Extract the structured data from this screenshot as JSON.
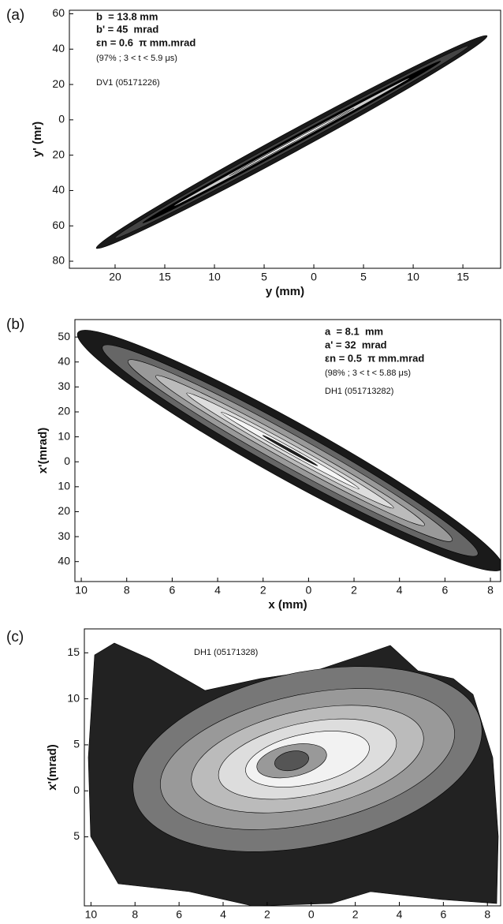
{
  "chart_data": [
    {
      "type": "contour",
      "panel": "(a)",
      "x_label": "y (mm)",
      "y_label": "y' (mr)",
      "annotations": [
        "b  = 13.8 mm",
        "b' = 45  mrad",
        "εn = 0.6  π mm.mrad",
        "(97% ; 3 < t < 5.9 μs)",
        "DV1 (05171226)"
      ],
      "xlim": [
        -24.6,
        18.8
      ],
      "ylim": [
        -84,
        62
      ],
      "xticks": [
        {
          "value": -20,
          "label": "20"
        },
        {
          "value": -15,
          "label": "15"
        },
        {
          "value": -10,
          "label": "10"
        },
        {
          "value": -5,
          "label": "5"
        },
        0,
        5,
        10,
        15
      ],
      "yticks": [
        60,
        40,
        20,
        0,
        {
          "value": -20,
          "label": "20"
        },
        {
          "value": -40,
          "label": "40"
        },
        {
          "value": -60,
          "label": "60"
        },
        {
          "value": -80,
          "label": "80"
        }
      ]
    },
    {
      "type": "contour",
      "panel": "(b)",
      "x_label": "x (mm)",
      "y_label": "x'(mrad)",
      "annotations": [
        "a  = 8.1  mm",
        "a' = 32  mrad",
        "εn = 0.5  π mm.mrad",
        "(98% ; 3 < t < 5.88 μs)",
        "DH1 (051713282)"
      ],
      "xlim": [
        -10.28,
        8.45
      ],
      "ylim": [
        -48,
        57
      ],
      "xticks": [
        {
          "value": -10,
          "label": "10"
        },
        {
          "value": -8,
          "label": "8"
        },
        {
          "value": -6,
          "label": "6"
        },
        {
          "value": -4,
          "label": "4"
        },
        {
          "value": -2,
          "label": "2"
        },
        0,
        2,
        4,
        6,
        8
      ],
      "yticks": [
        50,
        40,
        30,
        20,
        10,
        0,
        {
          "value": -10,
          "label": "10"
        },
        {
          "value": -20,
          "label": "20"
        },
        {
          "value": -30,
          "label": "30"
        },
        {
          "value": -40,
          "label": "40"
        }
      ]
    },
    {
      "type": "contour",
      "panel": "(c)",
      "x_label": "x(mm)",
      "y_label": "x'(mrad)",
      "annotations": [
        "DH1 (05171328)"
      ],
      "xlim": [
        -10.3,
        8.6
      ],
      "ylim": [
        -12.5,
        17.6
      ],
      "xticks": [
        {
          "value": -10,
          "label": "10"
        },
        {
          "value": -8,
          "label": "8"
        },
        {
          "value": -6,
          "label": "6"
        },
        {
          "value": -4,
          "label": "4"
        },
        {
          "value": -2,
          "label": "2"
        },
        0,
        2,
        4,
        6,
        8
      ],
      "yticks": [
        15,
        10,
        5,
        0,
        {
          "value": -5,
          "label": "5"
        }
      ]
    }
  ]
}
